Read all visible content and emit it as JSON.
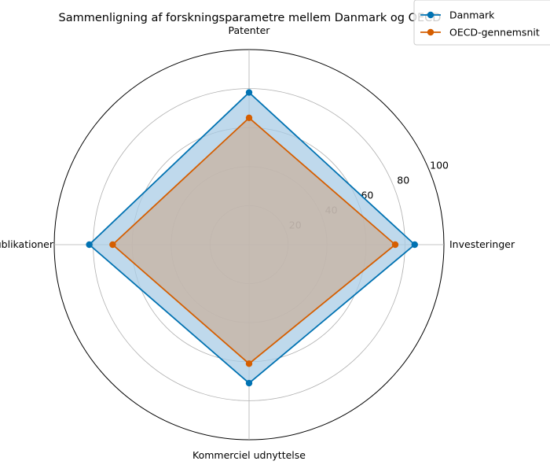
{
  "chart_data": {
    "type": "radar",
    "title": "Sammenligning af forskningsparametre mellem Danmark og OECD",
    "categories": [
      "Investeringer",
      "Patenter",
      "Publikationer",
      "Kommerciel udnyttelse"
    ],
    "rlim": [
      0,
      100
    ],
    "rticks": [
      20,
      40,
      60,
      80,
      100
    ],
    "grid": true,
    "legend_position": "top-right",
    "series": [
      {
        "name": "Danmark",
        "values": [
          85,
          78,
          82,
          71
        ],
        "color": "#0072B2",
        "fill": "#A9CCE6"
      },
      {
        "name": "OECD-gennemsnit",
        "values": [
          75,
          65,
          70,
          61
        ],
        "color": "#D55E00",
        "fill": "#C8B1A0"
      }
    ]
  }
}
